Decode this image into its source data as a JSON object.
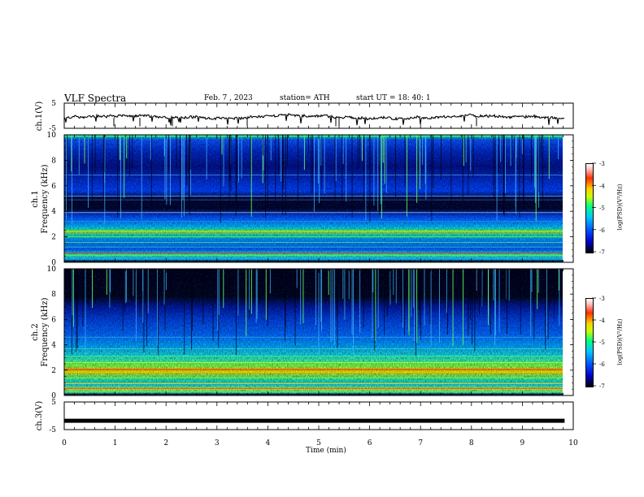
{
  "header": {
    "title": "VLF  Spectra",
    "date": "Feb. 7  , 2023",
    "station": "station= ATH",
    "start_ut": "start  UT  =   18: 40: 1"
  },
  "chart_data": [
    {
      "type": "line",
      "ylabel": "ch.1(V)",
      "xlabel": "",
      "ylim": [
        -5,
        5
      ],
      "y_ticks": [
        "5",
        "-5"
      ],
      "x_range_min": [
        0,
        9.83
      ]
    },
    {
      "type": "heatmap",
      "ylabel": "ch.1\nFrequency  (kHz)",
      "ylim": [
        0,
        10
      ],
      "y_ticks": [
        "0",
        "2",
        "4",
        "6",
        "8",
        "10"
      ],
      "colorbar": {
        "label": "log(PSD)(V²/Hz)",
        "range": [
          -7,
          -3
        ],
        "ticks": [
          "-3",
          "-4",
          "-5",
          "-6",
          "-7"
        ]
      }
    },
    {
      "type": "heatmap",
      "ylabel": "ch.2\nFrequency  (kHz)",
      "ylim": [
        0,
        10
      ],
      "y_ticks": [
        "0",
        "2",
        "4",
        "6",
        "8",
        "10"
      ],
      "colorbar": {
        "label": "log(PSD)(V²/Hz)",
        "range": [
          -7,
          -3
        ],
        "ticks": [
          "-3",
          "-4",
          "-5",
          "-6",
          "-7"
        ]
      }
    },
    {
      "type": "line",
      "ylabel": "ch.3(V)",
      "xlabel": "Time  (min)",
      "ylim": [
        -5,
        5
      ],
      "y_ticks": [
        "5",
        "-5"
      ],
      "xlim": [
        0,
        10
      ],
      "x_ticks": [
        "0",
        "1",
        "2",
        "3",
        "4",
        "5",
        "6",
        "7",
        "8",
        "9",
        "10"
      ]
    }
  ],
  "labels": {
    "ch1_volt": "ch.1(V)",
    "ch1_freq_a": "ch.1",
    "ch1_freq_b": "Frequency  (kHz)",
    "ch2_freq_a": "ch.2",
    "ch2_freq_b": "Frequency  (kHz)",
    "ch3_volt": "ch.3(V)",
    "colorbar": "log(PSD)(V²/Hz)",
    "xlabel": "Time  (min)"
  }
}
